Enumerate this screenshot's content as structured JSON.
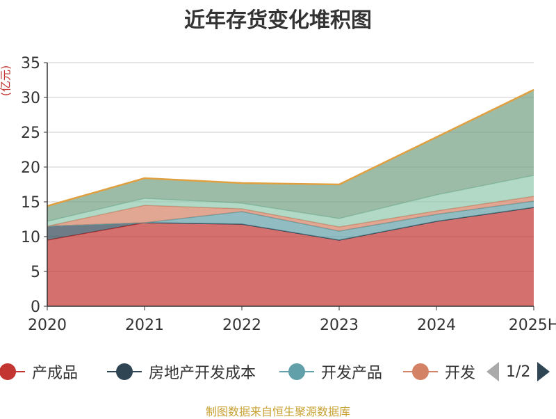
{
  "title": "近年存货变化堆积图",
  "unit_label": "(亿元)",
  "source": "制图数据来自恒生聚源数据库",
  "legend": {
    "items": [
      {
        "label": "产成品",
        "color": "#c23531"
      },
      {
        "label": "房地产开发成本",
        "color": "#2f4554"
      },
      {
        "label": "开发产品",
        "color": "#61a0a8"
      },
      {
        "label": "开发",
        "color": "#d48265"
      }
    ],
    "page": "1/2"
  },
  "chart_data": {
    "type": "area",
    "stacked": true,
    "title": "近年存货变化堆积图",
    "ylabel": "(亿元)",
    "x": [
      "2020",
      "2021",
      "2022",
      "2023",
      "2024",
      "2025H"
    ],
    "ylim": [
      0,
      35
    ],
    "yticks": [
      0,
      5,
      10,
      15,
      20,
      25,
      30,
      35
    ],
    "grid": true,
    "legend_position": "bottom",
    "series": [
      {
        "name": "产成品",
        "color": "#c23531",
        "values": [
          9.5,
          12.0,
          11.8,
          9.5,
          12.2,
          14.2
        ]
      },
      {
        "name": "房地产开发成本",
        "color": "#2f4554",
        "values": [
          2.0,
          0.0,
          0.0,
          0.0,
          0.0,
          0.0
        ]
      },
      {
        "name": "开发产品",
        "color": "#61a0a8",
        "values": [
          0.0,
          0.0,
          1.8,
          1.3,
          1.0,
          0.9
        ]
      },
      {
        "name": "开发",
        "color": "#d48265",
        "values": [
          0.0,
          2.5,
          0.4,
          0.6,
          0.5,
          0.7
        ]
      },
      {
        "color": "#91c7ae",
        "values": [
          0.7,
          1.0,
          0.8,
          1.2,
          2.3,
          3.0
        ]
      },
      {
        "color": "#749f83",
        "values": [
          2.2,
          2.9,
          2.9,
          4.9,
          8.3,
          12.3
        ]
      }
    ]
  }
}
